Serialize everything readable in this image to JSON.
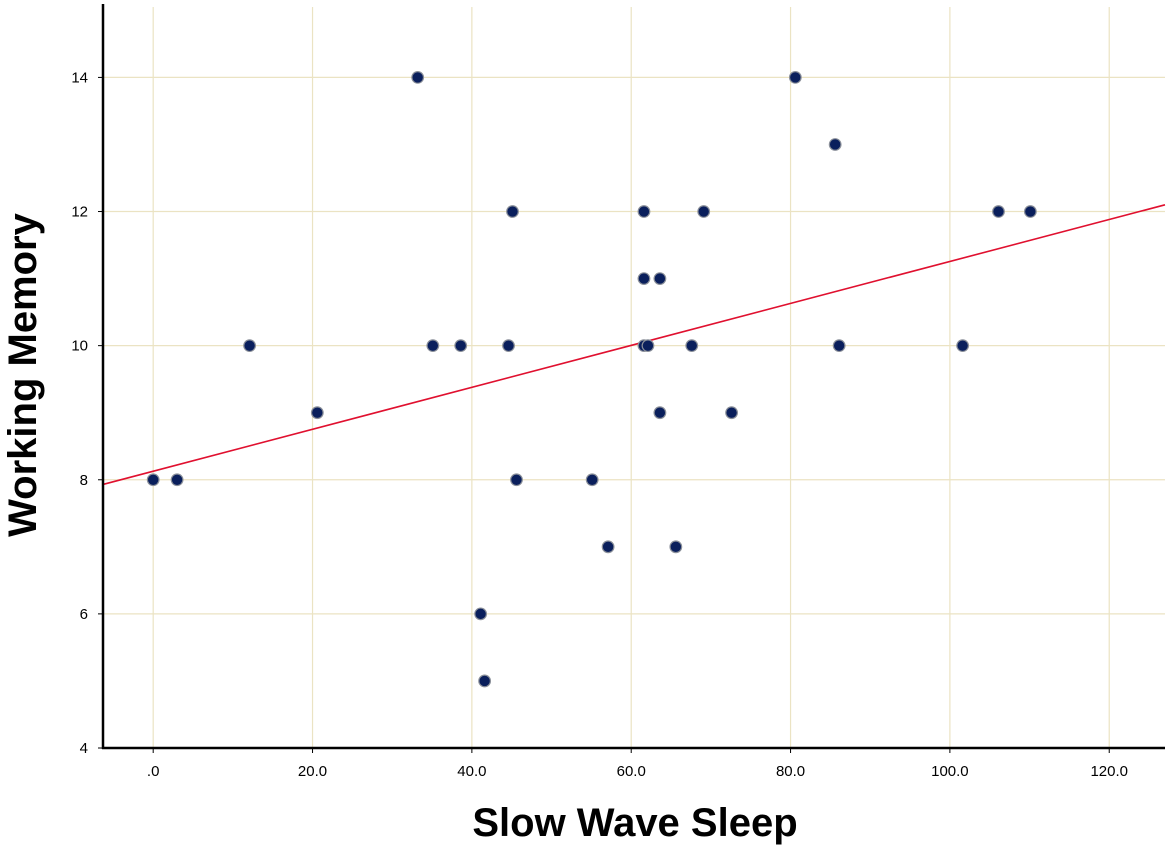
{
  "chart_data": {
    "type": "scatter",
    "title": "",
    "xlabel": "Slow Wave Sleep",
    "ylabel": "Working Memory",
    "xlim": [
      -6.3,
      127
    ],
    "ylim": [
      4,
      15.05
    ],
    "x_ticks": [
      0,
      20,
      40,
      60,
      80,
      100,
      120
    ],
    "x_tick_labels": [
      ".0",
      "20.0",
      "40.0",
      "60.0",
      "80.0",
      "100.0",
      "120.0"
    ],
    "y_ticks": [
      4,
      6,
      8,
      10,
      12,
      14
    ],
    "y_tick_labels": [
      "4",
      "6",
      "8",
      "10",
      "12",
      "14"
    ],
    "grid": true,
    "legend": "none",
    "colors": {
      "point_fill": "#0a1f5c",
      "point_stroke": "#8a8f99",
      "fit_line": "#e0102f",
      "grid": "#ebe3c3",
      "axis": "#000000"
    },
    "points": [
      {
        "x": 0.0,
        "y": 8
      },
      {
        "x": 3.0,
        "y": 8
      },
      {
        "x": 12.1,
        "y": 10
      },
      {
        "x": 20.6,
        "y": 9
      },
      {
        "x": 33.2,
        "y": 14
      },
      {
        "x": 35.1,
        "y": 10
      },
      {
        "x": 38.6,
        "y": 10
      },
      {
        "x": 41.1,
        "y": 6
      },
      {
        "x": 41.6,
        "y": 5
      },
      {
        "x": 44.6,
        "y": 10
      },
      {
        "x": 45.1,
        "y": 12
      },
      {
        "x": 45.6,
        "y": 8
      },
      {
        "x": 55.1,
        "y": 8
      },
      {
        "x": 57.1,
        "y": 7
      },
      {
        "x": 61.6,
        "y": 12
      },
      {
        "x": 61.6,
        "y": 11
      },
      {
        "x": 61.6,
        "y": 10
      },
      {
        "x": 62.1,
        "y": 10
      },
      {
        "x": 63.6,
        "y": 11
      },
      {
        "x": 63.6,
        "y": 9
      },
      {
        "x": 65.6,
        "y": 7
      },
      {
        "x": 67.6,
        "y": 10
      },
      {
        "x": 69.1,
        "y": 12
      },
      {
        "x": 72.6,
        "y": 9
      },
      {
        "x": 80.6,
        "y": 14
      },
      {
        "x": 85.6,
        "y": 13
      },
      {
        "x": 86.1,
        "y": 10
      },
      {
        "x": 101.6,
        "y": 10
      },
      {
        "x": 106.1,
        "y": 12
      },
      {
        "x": 110.1,
        "y": 12
      }
    ],
    "fit_line": {
      "x": [
        -6.3,
        127
      ],
      "y": [
        7.93,
        12.1
      ]
    }
  }
}
